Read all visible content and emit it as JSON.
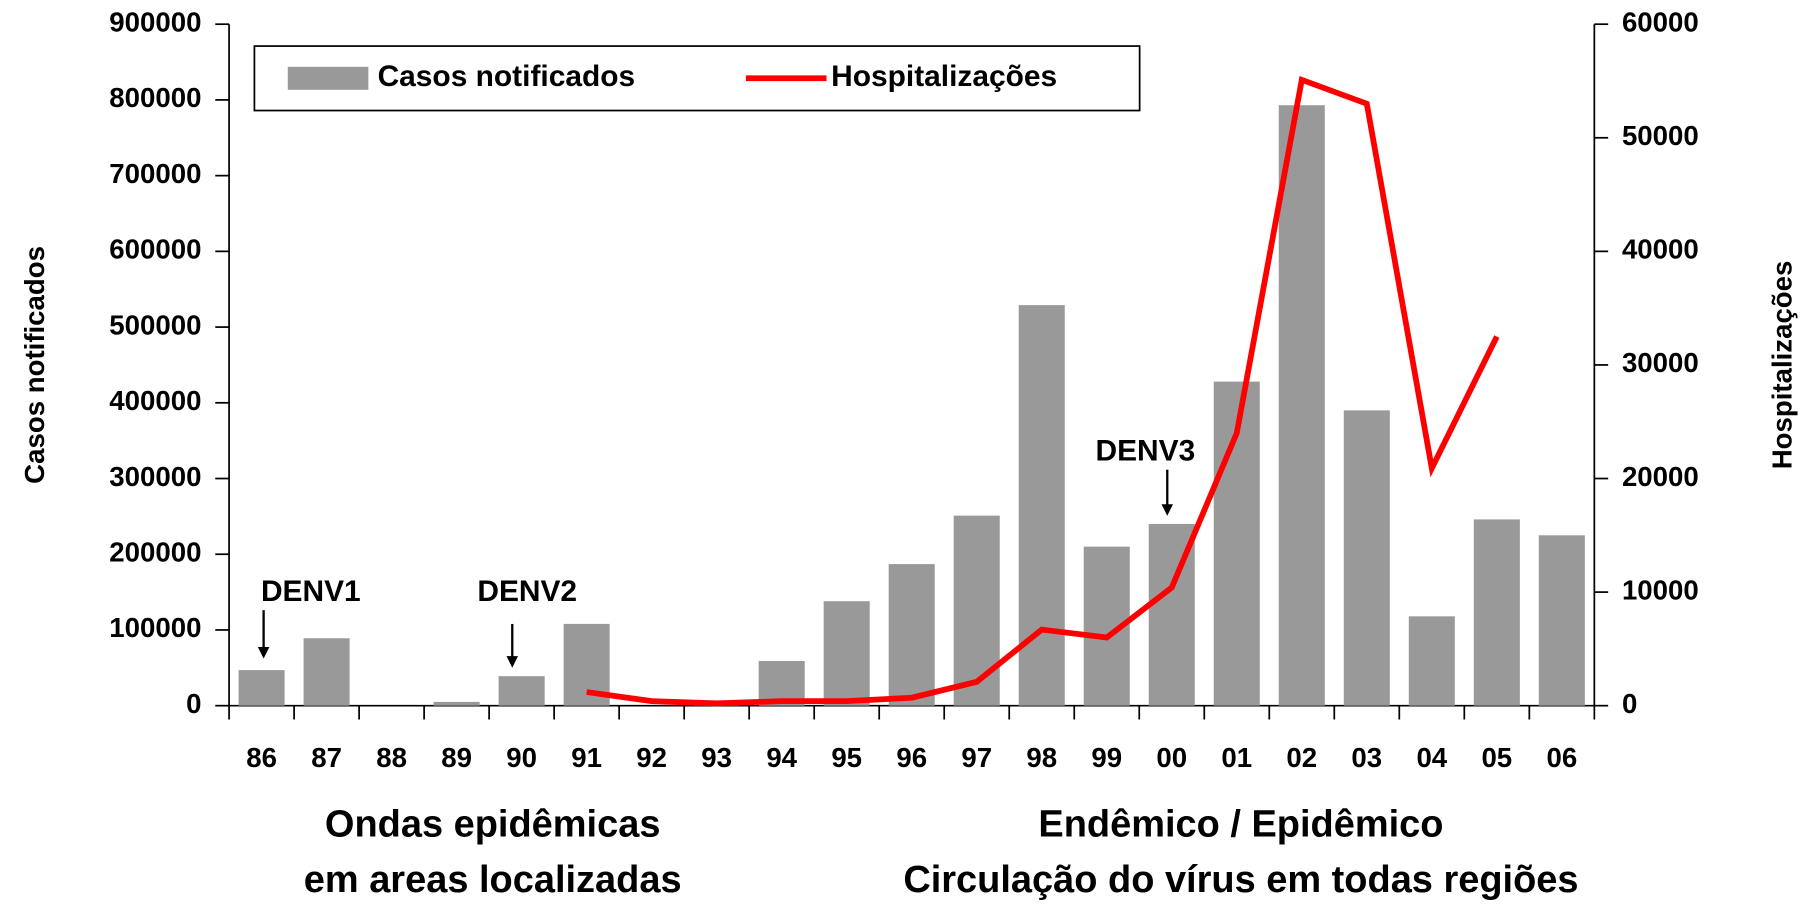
{
  "chart_data": {
    "type": "bar_line",
    "categories": [
      "86",
      "87",
      "88",
      "89",
      "90",
      "91",
      "92",
      "93",
      "94",
      "95",
      "96",
      "97",
      "98",
      "99",
      "00",
      "01",
      "02",
      "03",
      "04",
      "05",
      "06"
    ],
    "series": [
      {
        "name": "Casos notificados",
        "type": "bar",
        "color": "#999999",
        "axis": "y",
        "values": [
          47000,
          89000,
          null,
          5000,
          39000,
          108000,
          0,
          7000,
          59000,
          138000,
          187000,
          251000,
          529000,
          210000,
          240000,
          428000,
          793000,
          390000,
          118000,
          246000,
          225000
        ]
      },
      {
        "name": "Hospitalizações",
        "type": "line",
        "color": "#ff0000",
        "axis": "y2",
        "values": [
          null,
          null,
          null,
          null,
          null,
          1200,
          400,
          200,
          400,
          400,
          700,
          2100,
          6700,
          6000,
          10400,
          24000,
          55100,
          53000,
          20900,
          32500,
          null
        ]
      }
    ],
    "ylabel": "Casos notificados",
    "y2label": "Hospitalizações",
    "ylim": [
      0,
      900000
    ],
    "yticks": [
      0,
      100000,
      200000,
      300000,
      400000,
      500000,
      600000,
      700000,
      800000,
      900000
    ],
    "y2lim": [
      0,
      60000
    ],
    "y2ticks": [
      0,
      10000,
      20000,
      30000,
      40000,
      50000,
      60000
    ],
    "annotations": [
      "DENV1",
      "DENV2",
      "DENV3"
    ],
    "phases": [
      [
        "Ondas epidêmicas",
        "em areas localizadas"
      ],
      [
        "Endêmico / Epidêmico",
        "Circulação do vírus em todas regiões"
      ]
    ],
    "legend": "top-left",
    "grid": false
  }
}
